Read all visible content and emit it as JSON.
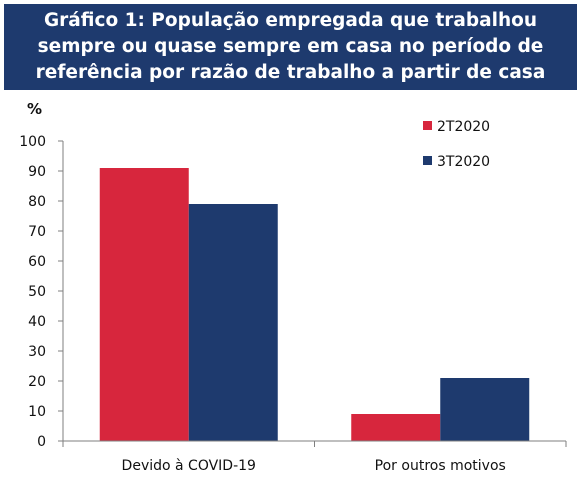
{
  "title_lines": [
    "Gráfico 1: População empregada que trabalhou",
    "sempre ou quase sempre em casa no período de",
    "referência por razão de trabalho a partir de casa"
  ],
  "chart_data": {
    "type": "bar",
    "title": "Gráfico 1: População empregada que trabalhou sempre ou quase sempre em casa no período de referência por razão de trabalho a partir de casa",
    "unit": "%",
    "categories": [
      "Devido à COVID-19",
      "Por outros motivos"
    ],
    "series": [
      {
        "name": "2T2020",
        "values": [
          91,
          9
        ],
        "color": "#d7263d"
      },
      {
        "name": "3T2020",
        "values": [
          79,
          21
        ],
        "color": "#1e3a6e"
      }
    ],
    "ylim": [
      0,
      100
    ],
    "yticks": [
      0,
      10,
      20,
      30,
      40,
      50,
      60,
      70,
      80,
      90,
      100
    ],
    "grid": false,
    "legend_position": "top-right"
  }
}
